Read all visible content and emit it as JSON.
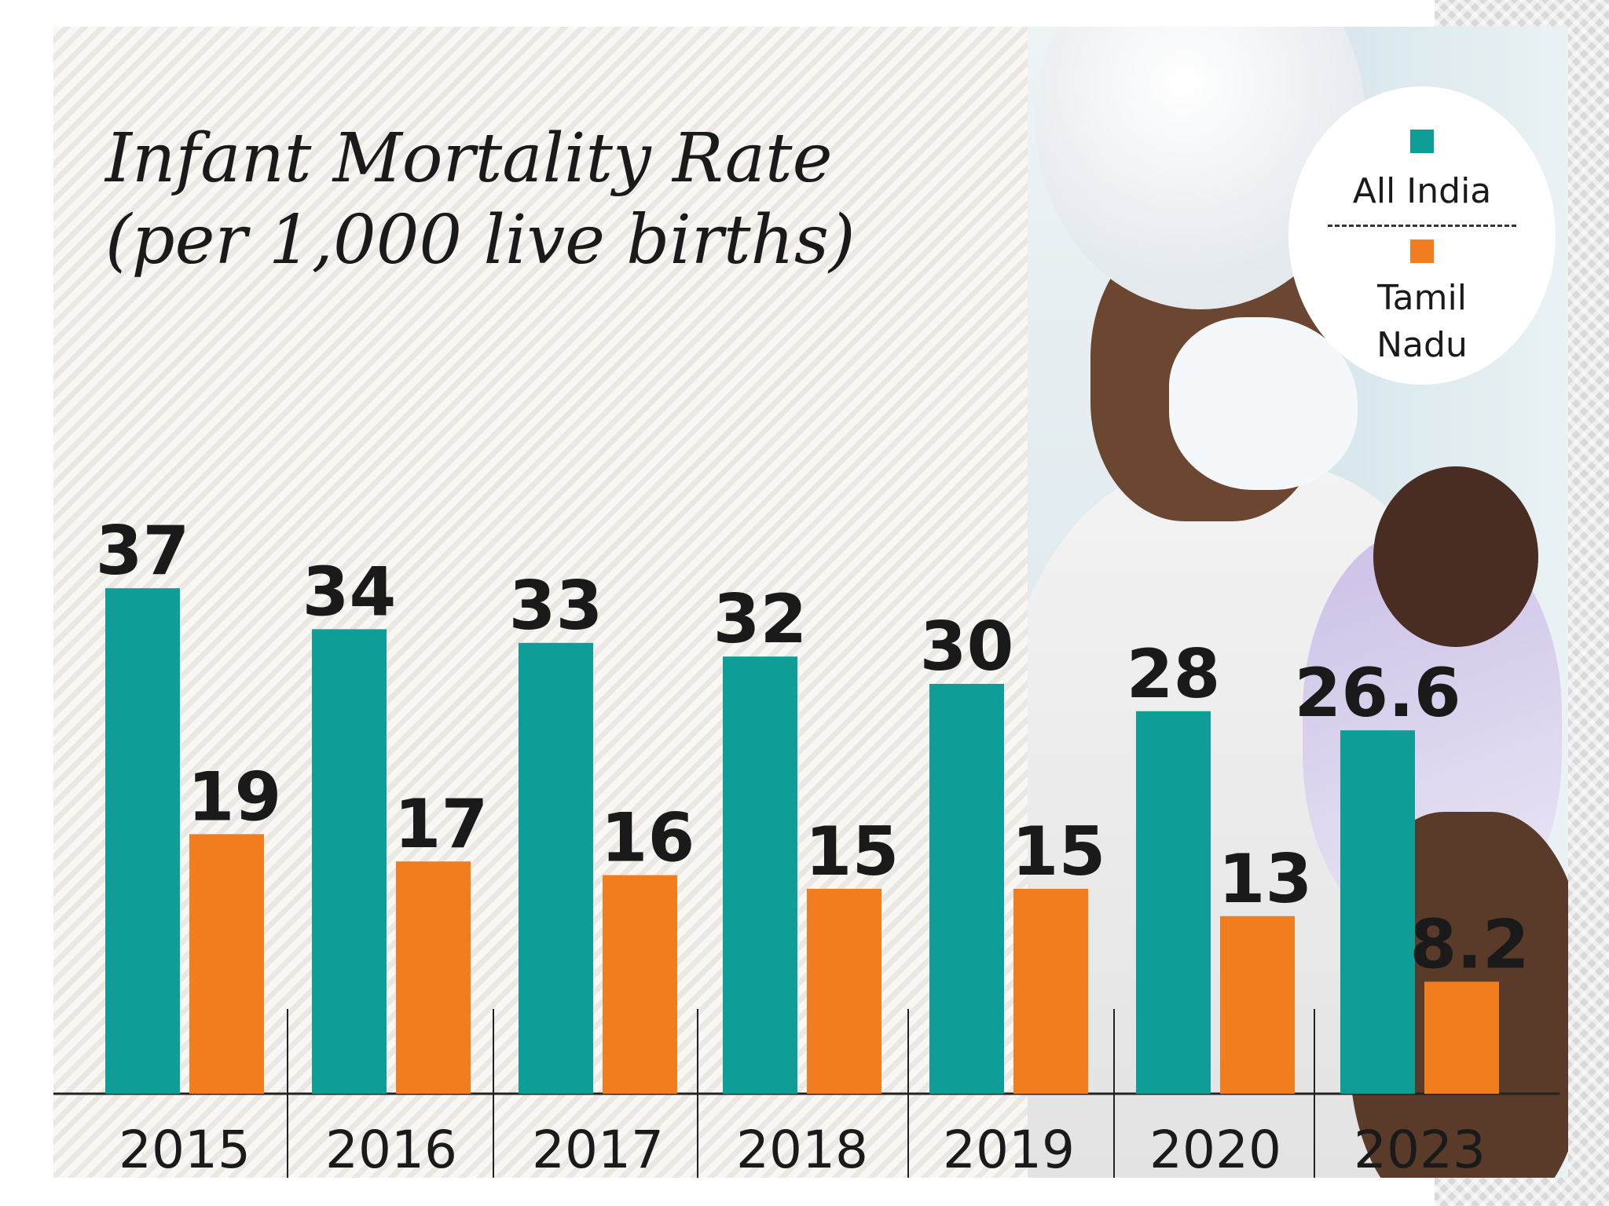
{
  "chart_data": {
    "type": "bar",
    "title": "Infant Mortality Rate\n(per 1,000 live births)",
    "categories": [
      "2015",
      "2016",
      "2017",
      "2018",
      "2019",
      "2020",
      "2023"
    ],
    "series": [
      {
        "name": "All India",
        "color": "#0f9e97",
        "values": [
          37,
          34,
          33,
          32,
          30,
          28,
          26.6
        ]
      },
      {
        "name": "Tamil Nadu",
        "color": "#f27d1f",
        "values": [
          19,
          17,
          16,
          15,
          15,
          13,
          8.2
        ]
      }
    ],
    "value_labels": [
      [
        "37",
        "34",
        "33",
        "32",
        "30",
        "28",
        "26.6"
      ],
      [
        "19",
        "17",
        "16",
        "15",
        "15",
        "13",
        "8.2"
      ]
    ],
    "ylim": [
      0,
      40
    ],
    "legend_position": "top-right"
  }
}
